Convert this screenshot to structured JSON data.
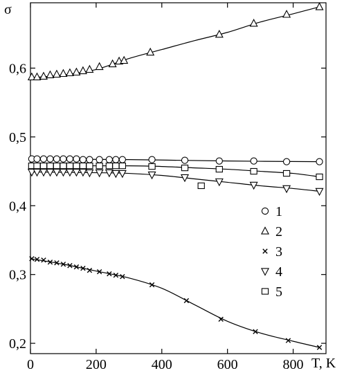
{
  "chart_data": {
    "type": "scatter",
    "title": "",
    "xlabel": "T, K",
    "ylabel": "σ",
    "xlim": [
      0,
      900
    ],
    "ylim": [
      0.185,
      0.695
    ],
    "xticks": [
      0,
      200,
      400,
      600,
      800
    ],
    "xtick_labels": [
      "0",
      "200",
      "400",
      "600",
      "800"
    ],
    "yticks": [
      0.2,
      0.3,
      0.4,
      0.5,
      0.6
    ],
    "ytick_labels": [
      "0,2",
      "0,3",
      "0,4",
      "0,5",
      "0,6"
    ],
    "grid": false,
    "legend": "right-middle",
    "series": [
      {
        "name": "1",
        "marker": "circle",
        "points": [
          [
            4,
            0.468
          ],
          [
            20,
            0.468
          ],
          [
            40,
            0.468
          ],
          [
            60,
            0.468
          ],
          [
            80,
            0.468
          ],
          [
            100,
            0.468
          ],
          [
            120,
            0.468
          ],
          [
            140,
            0.468
          ],
          [
            160,
            0.467
          ],
          [
            180,
            0.467
          ],
          [
            210,
            0.467
          ],
          [
            240,
            0.467
          ],
          [
            260,
            0.467
          ],
          [
            280,
            0.467
          ],
          [
            370,
            0.467
          ],
          [
            470,
            0.466
          ],
          [
            575,
            0.465
          ],
          [
            680,
            0.465
          ],
          [
            780,
            0.464
          ],
          [
            880,
            0.464
          ]
        ],
        "curve": [
          [
            0,
            0.468
          ],
          [
            300,
            0.467
          ],
          [
            600,
            0.465
          ],
          [
            880,
            0.464
          ]
        ]
      },
      {
        "name": "2",
        "marker": "triangle-up",
        "points": [
          [
            4,
            0.587
          ],
          [
            20,
            0.587
          ],
          [
            40,
            0.588
          ],
          [
            60,
            0.59
          ],
          [
            80,
            0.591
          ],
          [
            100,
            0.592
          ],
          [
            120,
            0.593
          ],
          [
            140,
            0.594
          ],
          [
            160,
            0.596
          ],
          [
            180,
            0.598
          ],
          [
            210,
            0.602
          ],
          [
            250,
            0.606
          ],
          [
            270,
            0.61
          ],
          [
            285,
            0.611
          ],
          [
            365,
            0.623
          ],
          [
            575,
            0.649
          ],
          [
            680,
            0.665
          ],
          [
            780,
            0.678
          ],
          [
            880,
            0.689
          ]
        ],
        "curve": [
          [
            0,
            0.586
          ],
          [
            100,
            0.59
          ],
          [
            200,
            0.598
          ],
          [
            300,
            0.614
          ],
          [
            400,
            0.627
          ],
          [
            500,
            0.64
          ],
          [
            600,
            0.652
          ],
          [
            700,
            0.667
          ],
          [
            800,
            0.679
          ],
          [
            880,
            0.689
          ]
        ]
      },
      {
        "name": "3",
        "marker": "x",
        "points": [
          [
            4,
            0.323
          ],
          [
            20,
            0.322
          ],
          [
            40,
            0.321
          ],
          [
            60,
            0.318
          ],
          [
            80,
            0.317
          ],
          [
            100,
            0.315
          ],
          [
            120,
            0.313
          ],
          [
            140,
            0.311
          ],
          [
            160,
            0.309
          ],
          [
            180,
            0.306
          ],
          [
            210,
            0.304
          ],
          [
            240,
            0.301
          ],
          [
            260,
            0.299
          ],
          [
            280,
            0.297
          ],
          [
            370,
            0.285
          ],
          [
            475,
            0.262
          ],
          [
            580,
            0.235
          ],
          [
            685,
            0.217
          ],
          [
            785,
            0.204
          ],
          [
            880,
            0.194
          ]
        ],
        "curve": [
          [
            0,
            0.323
          ],
          [
            100,
            0.315
          ],
          [
            200,
            0.305
          ],
          [
            300,
            0.295
          ],
          [
            400,
            0.28
          ],
          [
            500,
            0.256
          ],
          [
            600,
            0.232
          ],
          [
            700,
            0.215
          ],
          [
            800,
            0.203
          ],
          [
            880,
            0.194
          ]
        ]
      },
      {
        "name": "4",
        "marker": "triangle-down",
        "points": [
          [
            4,
            0.449
          ],
          [
            20,
            0.449
          ],
          [
            40,
            0.449
          ],
          [
            60,
            0.449
          ],
          [
            80,
            0.449
          ],
          [
            100,
            0.449
          ],
          [
            120,
            0.449
          ],
          [
            140,
            0.449
          ],
          [
            160,
            0.449
          ],
          [
            180,
            0.448
          ],
          [
            210,
            0.448
          ],
          [
            240,
            0.448
          ],
          [
            260,
            0.447
          ],
          [
            280,
            0.447
          ],
          [
            370,
            0.445
          ],
          [
            470,
            0.441
          ],
          [
            575,
            0.435
          ],
          [
            680,
            0.43
          ],
          [
            780,
            0.425
          ],
          [
            880,
            0.421
          ]
        ],
        "curve": [
          [
            0,
            0.449
          ],
          [
            200,
            0.448
          ],
          [
            300,
            0.447
          ],
          [
            400,
            0.444
          ],
          [
            500,
            0.439
          ],
          [
            600,
            0.434
          ],
          [
            700,
            0.429
          ],
          [
            800,
            0.425
          ],
          [
            880,
            0.421
          ]
        ]
      },
      {
        "name": "5",
        "marker": "square",
        "points": [
          [
            4,
            0.458
          ],
          [
            20,
            0.458
          ],
          [
            40,
            0.458
          ],
          [
            60,
            0.458
          ],
          [
            80,
            0.458
          ],
          [
            100,
            0.458
          ],
          [
            120,
            0.458
          ],
          [
            140,
            0.458
          ],
          [
            160,
            0.458
          ],
          [
            180,
            0.458
          ],
          [
            210,
            0.458
          ],
          [
            240,
            0.458
          ],
          [
            260,
            0.458
          ],
          [
            280,
            0.458
          ],
          [
            370,
            0.457
          ],
          [
            470,
            0.455
          ],
          [
            520,
            0.429
          ],
          [
            575,
            0.453
          ],
          [
            680,
            0.45
          ],
          [
            780,
            0.447
          ],
          [
            880,
            0.442
          ]
        ],
        "curve": [
          [
            0,
            0.458
          ],
          [
            300,
            0.458
          ],
          [
            400,
            0.457
          ],
          [
            500,
            0.455
          ],
          [
            600,
            0.453
          ],
          [
            700,
            0.45
          ],
          [
            800,
            0.447
          ],
          [
            880,
            0.442
          ]
        ]
      }
    ]
  }
}
